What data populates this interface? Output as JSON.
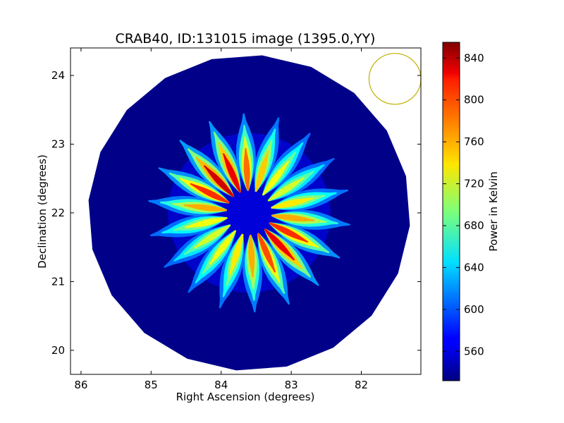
{
  "chart_data": {
    "type": "heatmap",
    "title": "CRAB40, ID:131015 image (1395.0,YY)",
    "xlabel": "Right Ascension (degrees)",
    "ylabel": "Declination (degrees)",
    "xlim": [
      86.15,
      81.15
    ],
    "ylim": [
      19.65,
      24.4
    ],
    "xticks": [
      "86",
      "85",
      "84",
      "83",
      "82"
    ],
    "yticks": [
      "20",
      "21",
      "22",
      "23",
      "24"
    ],
    "image_center": {
      "ra": 83.6,
      "dec": 22.0
    },
    "image_radius_deg": 2.3,
    "beam": {
      "ra": 81.52,
      "dec": 23.95,
      "radius_deg": 0.37,
      "color": "#c0b000"
    },
    "spokes": {
      "count": 18,
      "inner_radius_deg": 0.32,
      "outer_radius_deg": 1.45,
      "peak_values": [
        760,
        800,
        820,
        790,
        760,
        740,
        730,
        720,
        730,
        760,
        800,
        830,
        820,
        780,
        750,
        730,
        720,
        740
      ]
    },
    "colorbar": {
      "label": "Power in Kelvin",
      "vmin": 532,
      "vmax": 855,
      "ticks": [
        560,
        600,
        640,
        680,
        720,
        760,
        800,
        840
      ]
    },
    "background_value": 535,
    "colormap": "jet"
  }
}
